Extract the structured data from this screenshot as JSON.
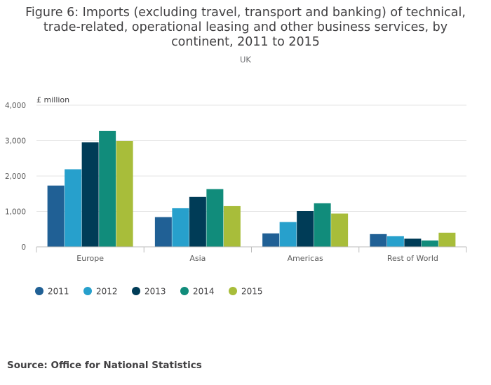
{
  "chart_data": {
    "type": "bar",
    "title": "Figure 6: Imports (excluding travel, transport and banking) of technical, trade-related, operational leasing and other business services, by continent, 2011 to 2015",
    "title_lines": [
      "Figure 6: Imports (excluding travel, transport and banking) of technical,",
      "trade-related, operational leasing and other business services, by",
      "continent, 2011 to 2015"
    ],
    "subtitle": "UK",
    "ylabel": "£ million",
    "xlabel": "",
    "ylim": [
      0,
      4000
    ],
    "yticks": [
      0,
      1000,
      2000,
      3000,
      4000
    ],
    "ytick_labels": [
      "0",
      "1,000",
      "2,000",
      "3,000",
      "4,000"
    ],
    "grid": true,
    "legend_position": "bottom-left",
    "categories": [
      "Europe",
      "Asia",
      "Americas",
      "Rest of World"
    ],
    "series": [
      {
        "name": "2011",
        "color": "#206095",
        "values": [
          1730,
          840,
          380,
          360
        ]
      },
      {
        "name": "2012",
        "color": "#27a0cc",
        "values": [
          2190,
          1090,
          700,
          300
        ]
      },
      {
        "name": "2013",
        "color": "#003c57",
        "values": [
          2950,
          1410,
          1010,
          230
        ]
      },
      {
        "name": "2014",
        "color": "#118c7b",
        "values": [
          3270,
          1630,
          1230,
          180
        ]
      },
      {
        "name": "2015",
        "color": "#a8bd3a",
        "values": [
          2990,
          1150,
          940,
          400
        ]
      }
    ]
  },
  "source": "Source: Office for National Statistics"
}
